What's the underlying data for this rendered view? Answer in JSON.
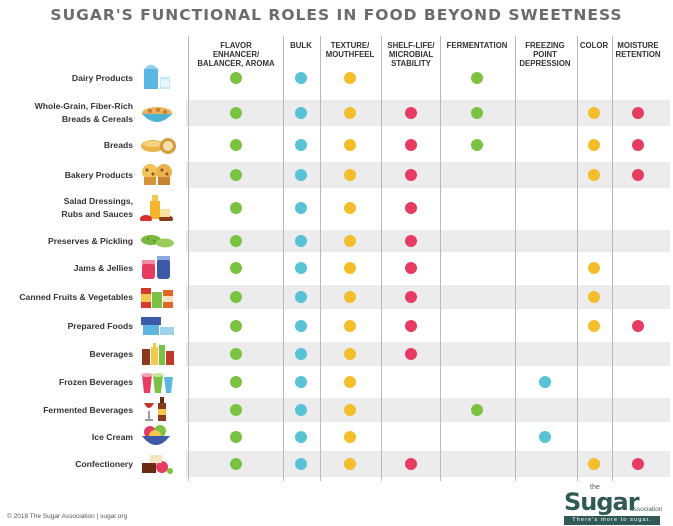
{
  "title": "SUGAR'S FUNCTIONAL ROLES IN FOOD BEYOND SWEETNESS",
  "colors": {
    "green": "#7cc242",
    "blue": "#59c3d6",
    "yellow": "#f3bd2c",
    "red": "#e63c62"
  },
  "columns": [
    {
      "key": "flavor",
      "label": "FLAVOR\nENHANCER/\nBALANCER, AROMA"
    },
    {
      "key": "bulk",
      "label": "BULK"
    },
    {
      "key": "texture",
      "label": "TEXTURE/\nMOUTHFEEL"
    },
    {
      "key": "shelf",
      "label": "SHELF-LIFE/\nMICROBIAL\nSTABILITY"
    },
    {
      "key": "ferment",
      "label": "FERMENTATION"
    },
    {
      "key": "freezing",
      "label": "FREEZING\nPOINT\nDEPRESSION"
    },
    {
      "key": "color",
      "label": "COLOR"
    },
    {
      "key": "moisture",
      "label": "MOISTURE\nRETENTION"
    }
  ],
  "rows": [
    {
      "label": "Dairy Products",
      "icon": "dairy-products-icon",
      "cells": [
        "green",
        "blue",
        "yellow",
        "",
        "green",
        "",
        "",
        ""
      ]
    },
    {
      "label": "Whole-Grain, Fiber-Rich\nBreads & Cereals",
      "icon": "cereal-bowl-icon",
      "cells": [
        "green",
        "blue",
        "yellow",
        "red",
        "green",
        "",
        "yellow",
        "red"
      ]
    },
    {
      "label": "Breads",
      "icon": "bread-icon",
      "cells": [
        "green",
        "blue",
        "yellow",
        "red",
        "green",
        "",
        "yellow",
        "red"
      ]
    },
    {
      "label": "Bakery Products",
      "icon": "muffin-icon",
      "cells": [
        "green",
        "blue",
        "yellow",
        "red",
        "",
        "",
        "yellow",
        "red"
      ]
    },
    {
      "label": "Salad Dressings,\nRubs and Sauces",
      "icon": "sauces-icon",
      "cells": [
        "green",
        "blue",
        "yellow",
        "red",
        "",
        "",
        "",
        ""
      ]
    },
    {
      "label": "Preserves & Pickling",
      "icon": "pickles-icon",
      "cells": [
        "green",
        "blue",
        "yellow",
        "red",
        "",
        "",
        "",
        ""
      ]
    },
    {
      "label": "Jams & Jellies",
      "icon": "jam-jars-icon",
      "cells": [
        "green",
        "blue",
        "yellow",
        "red",
        "",
        "",
        "yellow",
        ""
      ]
    },
    {
      "label": "Canned Fruits & Vegetables",
      "icon": "canned-goods-icon",
      "cells": [
        "green",
        "blue",
        "yellow",
        "red",
        "",
        "",
        "yellow",
        ""
      ]
    },
    {
      "label": "Prepared Foods",
      "icon": "food-containers-icon",
      "cells": [
        "green",
        "blue",
        "yellow",
        "red",
        "",
        "",
        "yellow",
        "red"
      ]
    },
    {
      "label": "Beverages",
      "icon": "beverage-bottles-icon",
      "cells": [
        "green",
        "blue",
        "yellow",
        "red",
        "",
        "",
        "",
        ""
      ]
    },
    {
      "label": "Frozen Beverages",
      "icon": "frozen-drinks-icon",
      "cells": [
        "green",
        "blue",
        "yellow",
        "",
        "",
        "blue",
        "",
        ""
      ]
    },
    {
      "label": "Fermented Beverages",
      "icon": "wine-bottle-icon",
      "cells": [
        "green",
        "blue",
        "yellow",
        "",
        "green",
        "",
        "",
        ""
      ]
    },
    {
      "label": "Ice Cream",
      "icon": "ice-cream-icon",
      "cells": [
        "green",
        "blue",
        "yellow",
        "",
        "",
        "blue",
        "",
        ""
      ]
    },
    {
      "label": "Confectionery",
      "icon": "candy-icon",
      "cells": [
        "green",
        "blue",
        "yellow",
        "red",
        "",
        "",
        "yellow",
        "red"
      ]
    }
  ],
  "footer": "© 2018 The Sugar Association  |  sugar.org",
  "logo": {
    "the": "the",
    "word": "Sugar",
    "association": "association",
    "tagline": "There's more to sugar."
  }
}
